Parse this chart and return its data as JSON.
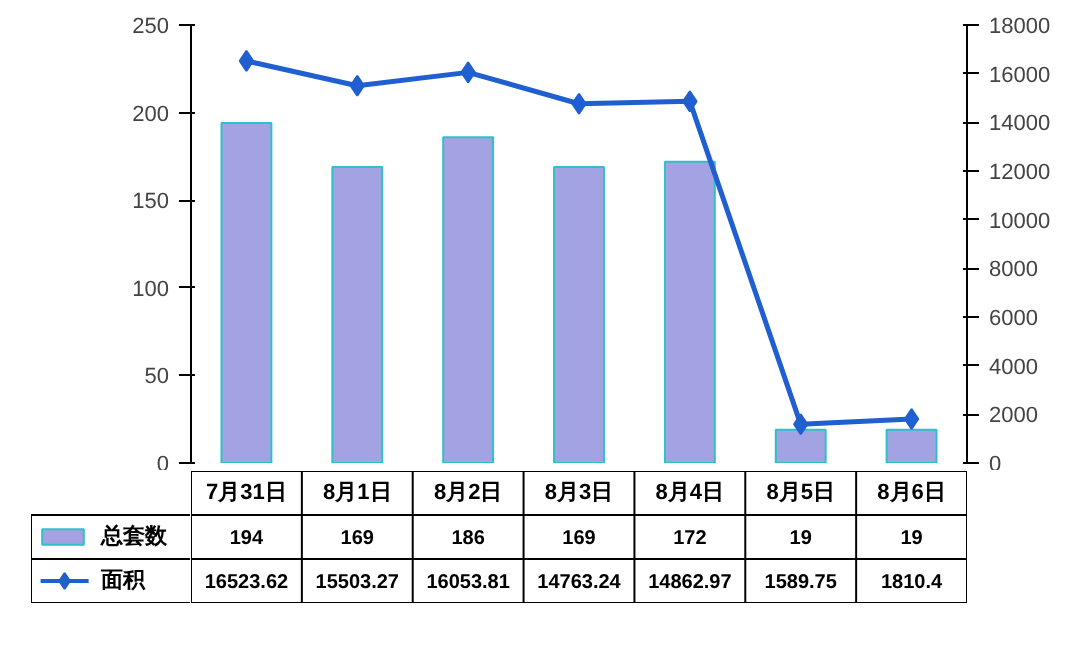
{
  "chart_data": {
    "type": "bar",
    "categories": [
      "7月31日",
      "8月1日",
      "8月2日",
      "8月3日",
      "8月4日",
      "8月5日",
      "8月6日"
    ],
    "series": [
      {
        "name": "总套数",
        "color": "#a3a3e3",
        "values": [
          194,
          169,
          186,
          169,
          172,
          19,
          19
        ]
      },
      {
        "name": "面积",
        "type": "line",
        "axis": "y2",
        "color": "#1f5fd0",
        "values": [
          16523.62,
          15503.27,
          16053.81,
          14763.24,
          14862.97,
          1589.75,
          1810.4
        ]
      }
    ],
    "ylim": [
      0,
      250
    ],
    "yticks": [
      0,
      50,
      100,
      150,
      200,
      250
    ],
    "y2lim": [
      0,
      18000
    ],
    "y2ticks": [
      0,
      2000,
      4000,
      6000,
      8000,
      10000,
      12000,
      14000,
      16000,
      18000
    ],
    "marker": "diamond",
    "data_labels": true,
    "legend": "bottom left",
    "grid": false
  }
}
